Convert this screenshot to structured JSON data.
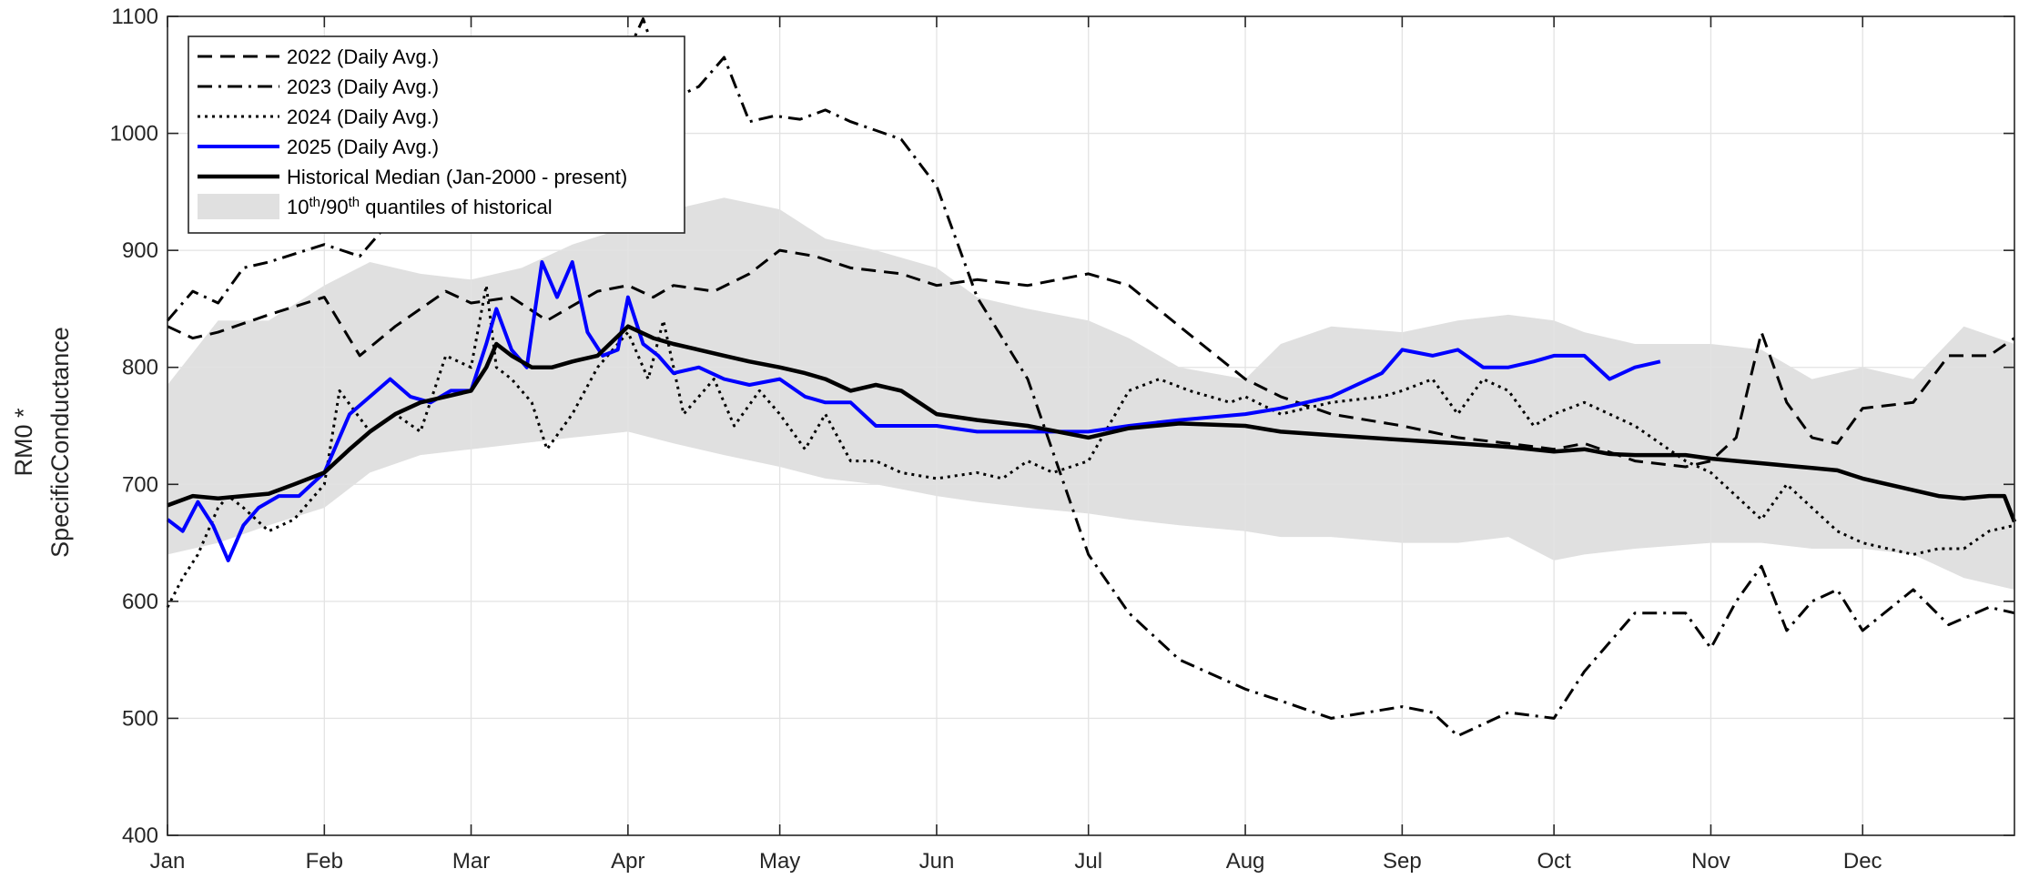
{
  "chart_data": {
    "type": "line",
    "ylabel_lines": [
      "RM0 *",
      "SpecificConductance"
    ],
    "xlim": [
      0,
      365
    ],
    "ylim": [
      400,
      1100
    ],
    "yticks": [
      400,
      500,
      600,
      700,
      800,
      900,
      1000,
      1100
    ],
    "xticks": [
      {
        "day": 0,
        "label": "Jan"
      },
      {
        "day": 31,
        "label": "Feb"
      },
      {
        "day": 60,
        "label": "Mar"
      },
      {
        "day": 91,
        "label": "Apr"
      },
      {
        "day": 121,
        "label": "May"
      },
      {
        "day": 152,
        "label": "Jun"
      },
      {
        "day": 182,
        "label": "Jul"
      },
      {
        "day": 213,
        "label": "Aug"
      },
      {
        "day": 244,
        "label": "Sep"
      },
      {
        "day": 274,
        "label": "Oct"
      },
      {
        "day": 305,
        "label": "Nov"
      },
      {
        "day": 335,
        "label": "Dec"
      }
    ],
    "grid": true,
    "legend_position": "top-left",
    "legend": [
      {
        "text": "2022 (Daily Avg.)",
        "series": "2022"
      },
      {
        "text": "2023 (Daily Avg.)",
        "series": "2023"
      },
      {
        "text": "2024 (Daily Avg.)",
        "series": "2024"
      },
      {
        "text": "2025 (Daily Avg.)",
        "series": "2025"
      },
      {
        "text": "Historical Median (Jan-2000 - present)",
        "series": "median"
      },
      {
        "text": "10th/90th quantiles of historical",
        "series": "band",
        "sup1": "th",
        "sup2": "th"
      }
    ],
    "colors": {
      "blue": "#0000ff",
      "black": "#000000",
      "band": "#e0e0e0",
      "grid": "#e3e3e3"
    },
    "band": {
      "x": [
        0,
        10,
        20,
        31,
        40,
        50,
        60,
        70,
        80,
        91,
        100,
        110,
        121,
        130,
        140,
        152,
        160,
        170,
        182,
        190,
        200,
        213,
        220,
        230,
        244,
        255,
        265,
        274,
        280,
        290,
        305,
        315,
        325,
        335,
        345,
        355,
        365
      ],
      "upper": [
        785,
        840,
        840,
        870,
        890,
        880,
        875,
        885,
        905,
        920,
        935,
        945,
        935,
        910,
        900,
        885,
        860,
        850,
        840,
        825,
        800,
        790,
        820,
        835,
        830,
        840,
        845,
        840,
        830,
        820,
        820,
        815,
        790,
        800,
        790,
        835,
        820
      ],
      "lower": [
        640,
        650,
        665,
        680,
        710,
        725,
        730,
        735,
        740,
        745,
        735,
        725,
        715,
        705,
        700,
        690,
        685,
        680,
        675,
        670,
        665,
        660,
        655,
        655,
        650,
        650,
        655,
        635,
        640,
        645,
        650,
        650,
        645,
        645,
        640,
        620,
        610
      ]
    },
    "series": [
      {
        "name": "2022 (Daily Avg.)",
        "style": "dash",
        "color": "#000000",
        "width": 3,
        "x": [
          0,
          5,
          10,
          20,
          31,
          38,
          45,
          55,
          60,
          68,
          75,
          85,
          91,
          96,
          100,
          108,
          115,
          121,
          128,
          135,
          145,
          152,
          160,
          170,
          182,
          190,
          200,
          213,
          220,
          230,
          244,
          255,
          265,
          274,
          280,
          290,
          300,
          305,
          310,
          315,
          320,
          325,
          330,
          335,
          345,
          352,
          360,
          365
        ],
        "y": [
          835,
          825,
          830,
          845,
          860,
          810,
          835,
          865,
          855,
          860,
          840,
          865,
          870,
          860,
          870,
          865,
          880,
          900,
          895,
          885,
          880,
          870,
          875,
          870,
          880,
          870,
          835,
          790,
          775,
          760,
          750,
          740,
          735,
          730,
          735,
          720,
          715,
          720,
          740,
          830,
          770,
          740,
          735,
          765,
          770,
          810,
          810,
          825
        ]
      },
      {
        "name": "2023 (Daily Avg.)",
        "style": "dashdot",
        "color": "#000000",
        "width": 3,
        "x": [
          0,
          5,
          10,
          15,
          20,
          31,
          38,
          45,
          52,
          60,
          68,
          75,
          85,
          91,
          94,
          97,
          100,
          105,
          110,
          115,
          120,
          125,
          130,
          135,
          145,
          152,
          160,
          170,
          182,
          190,
          200,
          213,
          220,
          230,
          244,
          250,
          255,
          265,
          274,
          280,
          290,
          300,
          305,
          310,
          315,
          320,
          325,
          330,
          335,
          345,
          352,
          360,
          365
        ],
        "y": [
          840,
          865,
          855,
          885,
          890,
          905,
          895,
          930,
          960,
          985,
          1020,
          1030,
          1050,
          1070,
          1098,
          1060,
          1030,
          1040,
          1065,
          1010,
          1015,
          1012,
          1020,
          1010,
          995,
          955,
          860,
          790,
          640,
          590,
          550,
          525,
          515,
          500,
          510,
          505,
          485,
          505,
          500,
          540,
          590,
          590,
          560,
          600,
          630,
          575,
          600,
          610,
          575,
          610,
          580,
          595,
          590
        ]
      },
      {
        "name": "2024 (Daily Avg.)",
        "style": "dot",
        "color": "#000000",
        "width": 3,
        "x": [
          0,
          3,
          6,
          10,
          12,
          15,
          20,
          25,
          31,
          34,
          40,
          45,
          50,
          55,
          60,
          63,
          65,
          68,
          72,
          75,
          80,
          85,
          91,
          95,
          98,
          102,
          108,
          112,
          117,
          121,
          126,
          130,
          135,
          140,
          145,
          152,
          160,
          165,
          170,
          175,
          182,
          190,
          196,
          202,
          210,
          213,
          220,
          230,
          240,
          244,
          250,
          255,
          260,
          265,
          270,
          274,
          280,
          285,
          290,
          295,
          300,
          305,
          310,
          315,
          320,
          325,
          330,
          335,
          345,
          350,
          355,
          360,
          365
        ],
        "y": [
          595,
          620,
          640,
          680,
          690,
          680,
          660,
          670,
          700,
          780,
          745,
          760,
          745,
          810,
          800,
          870,
          800,
          790,
          770,
          730,
          760,
          800,
          830,
          790,
          840,
          760,
          790,
          750,
          780,
          760,
          730,
          760,
          720,
          720,
          710,
          705,
          710,
          705,
          720,
          710,
          720,
          780,
          790,
          780,
          770,
          775,
          760,
          770,
          775,
          780,
          790,
          760,
          790,
          780,
          750,
          760,
          770,
          760,
          750,
          735,
          720,
          710,
          690,
          670,
          700,
          680,
          660,
          650,
          640,
          645,
          645,
          660,
          665
        ]
      },
      {
        "name": "2025 (Daily Avg.)",
        "style": "solid",
        "color": "#0000ff",
        "width": 4,
        "x": [
          0,
          3,
          6,
          9,
          12,
          15,
          18,
          22,
          26,
          31,
          36,
          40,
          44,
          48,
          52,
          56,
          60,
          63,
          65,
          68,
          71,
          74,
          77,
          80,
          83,
          86,
          89,
          91,
          94,
          97,
          100,
          105,
          110,
          115,
          121,
          126,
          130,
          135,
          140,
          145,
          152,
          160,
          170,
          182,
          190,
          200,
          213,
          220,
          230,
          240,
          244,
          250,
          255,
          260,
          265,
          270,
          274,
          280,
          285,
          290,
          295
        ],
        "y": [
          670,
          660,
          685,
          665,
          635,
          665,
          680,
          690,
          690,
          710,
          760,
          775,
          790,
          775,
          770,
          780,
          780,
          820,
          850,
          815,
          800,
          890,
          860,
          890,
          830,
          810,
          815,
          860,
          820,
          810,
          795,
          800,
          790,
          785,
          790,
          775,
          770,
          770,
          750,
          750,
          750,
          745,
          745,
          745,
          750,
          755,
          760,
          765,
          775,
          795,
          815,
          810,
          815,
          800,
          800,
          805,
          810,
          810,
          790,
          800,
          805
        ]
      },
      {
        "name": "Historical Median (Jan-2000 - present)",
        "style": "solid",
        "color": "#000000",
        "width": 4.5,
        "x": [
          0,
          5,
          10,
          15,
          20,
          25,
          31,
          36,
          40,
          45,
          50,
          55,
          60,
          63,
          65,
          68,
          72,
          76,
          80,
          85,
          91,
          96,
          100,
          105,
          110,
          115,
          121,
          126,
          130,
          135,
          140,
          145,
          152,
          160,
          170,
          182,
          190,
          200,
          213,
          220,
          230,
          244,
          255,
          265,
          274,
          280,
          285,
          290,
          300,
          305,
          310,
          315,
          320,
          325,
          330,
          335,
          340,
          345,
          350,
          355,
          360,
          363,
          365
        ],
        "y": [
          682,
          690,
          688,
          690,
          692,
          700,
          710,
          730,
          745,
          760,
          770,
          775,
          780,
          800,
          820,
          810,
          800,
          800,
          805,
          810,
          835,
          825,
          820,
          815,
          810,
          805,
          800,
          795,
          790,
          780,
          785,
          780,
          760,
          755,
          750,
          740,
          748,
          752,
          750,
          745,
          742,
          738,
          735,
          732,
          728,
          730,
          726,
          725,
          725,
          722,
          720,
          718,
          716,
          714,
          712,
          705,
          700,
          695,
          690,
          688,
          690,
          690,
          668
        ]
      }
    ]
  }
}
